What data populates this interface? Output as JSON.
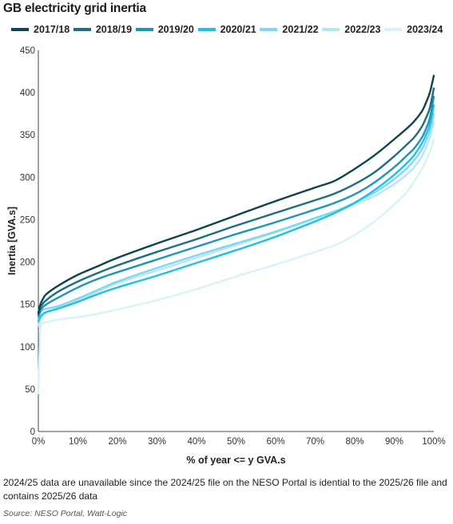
{
  "title": "GB electricity grid inertia",
  "footnote": "2024/25 data are unavailable since the 2024/25 file on the NESO Portal is idential to the 2025/26 file and contains 2025/26 data",
  "source": "Source: NESO Portal, Watt-Logic",
  "chart_data": {
    "type": "line",
    "title": "GB electricity grid inertia",
    "xlabel": "% of year <= y GVA.s",
    "ylabel": "Inertia [GVA.s]",
    "x_ticks": [
      "0%",
      "10%",
      "20%",
      "30%",
      "40%",
      "50%",
      "60%",
      "70%",
      "80%",
      "90%",
      "100%"
    ],
    "y_ticks": [
      "0",
      "50",
      "100",
      "150",
      "200",
      "250",
      "300",
      "350",
      "400",
      "450"
    ],
    "xlim": [
      0,
      100
    ],
    "ylim": [
      0,
      450
    ],
    "grid": false,
    "legend_position": "top",
    "x": [
      0,
      0.5,
      1,
      2,
      5,
      10,
      15,
      20,
      30,
      40,
      50,
      60,
      70,
      75,
      80,
      85,
      90,
      93,
      95,
      97,
      98,
      99,
      100
    ],
    "series": [
      {
        "name": "2017/18",
        "color": "#0c4452",
        "values": [
          140,
          150,
          155,
          162,
          172,
          185,
          195,
          205,
          222,
          238,
          255,
          272,
          288,
          296,
          310,
          326,
          345,
          357,
          366,
          378,
          388,
          400,
          420
        ]
      },
      {
        "name": "2018/19",
        "color": "#1c6e80",
        "values": [
          138,
          146,
          150,
          155,
          165,
          177,
          187,
          196,
          212,
          227,
          243,
          258,
          273,
          281,
          292,
          306,
          325,
          338,
          347,
          360,
          370,
          382,
          405
        ]
      },
      {
        "name": "2019/20",
        "color": "#1b97b5",
        "values": [
          136,
          142,
          146,
          150,
          158,
          170,
          180,
          188,
          203,
          218,
          233,
          247,
          262,
          270,
          280,
          294,
          312,
          325,
          334,
          347,
          357,
          370,
          395
        ]
      },
      {
        "name": "2020/21",
        "color": "#1dc1e6",
        "values": [
          130,
          135,
          138,
          141,
          145,
          153,
          162,
          170,
          184,
          199,
          214,
          230,
          248,
          258,
          270,
          285,
          303,
          316,
          326,
          340,
          350,
          362,
          385
        ]
      },
      {
        "name": "2021/22",
        "color": "#7fd8ef",
        "values": [
          134,
          140,
          143,
          145,
          148,
          157,
          167,
          177,
          193,
          208,
          222,
          236,
          252,
          260,
          270,
          282,
          298,
          310,
          320,
          333,
          343,
          355,
          375
        ]
      },
      {
        "name": "2022/23",
        "color": "#b2e8f5",
        "values": [
          125,
          132,
          136,
          140,
          146,
          155,
          165,
          175,
          190,
          205,
          220,
          235,
          251,
          259,
          268,
          278,
          292,
          303,
          312,
          325,
          335,
          347,
          365
        ]
      },
      {
        "name": "2023/24",
        "color": "#d6f3fa",
        "values": [
          45,
          120,
          127,
          129,
          132,
          135,
          139,
          144,
          155,
          168,
          183,
          197,
          212,
          220,
          232,
          248,
          268,
          282,
          295,
          310,
          320,
          330,
          345
        ]
      }
    ]
  }
}
